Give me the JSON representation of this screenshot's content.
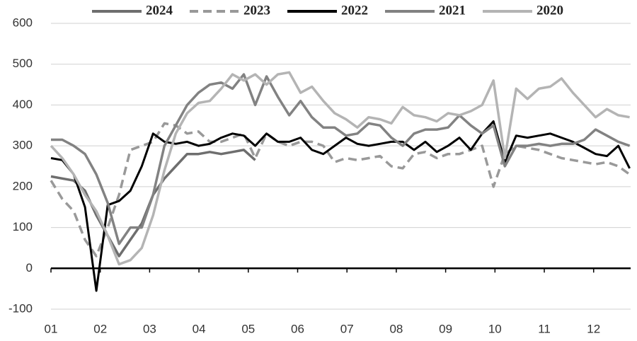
{
  "chart_data": {
    "type": "line",
    "legend": "top",
    "grid": true,
    "x": [
      1,
      1.23,
      1.46,
      1.69,
      1.92,
      2.15,
      2.38,
      2.61,
      2.84,
      3.07,
      3.3,
      3.53,
      3.76,
      3.99,
      4.22,
      4.45,
      4.68,
      4.91,
      5.14,
      5.37,
      5.6,
      5.83,
      6.06,
      6.29,
      6.52,
      6.75,
      6.98,
      7.21,
      7.44,
      7.67,
      7.9,
      8.13,
      8.36,
      8.59,
      8.82,
      9.05,
      9.28,
      9.51,
      9.74,
      9.97,
      10.2,
      10.43,
      10.66,
      10.89,
      11.12,
      11.35,
      11.58,
      11.81,
      12.04,
      12.27,
      12.5,
      12.73
    ],
    "xlim": [
      1,
      12.75
    ],
    "xticks": [
      {
        "value": 1,
        "label": "01"
      },
      {
        "value": 2,
        "label": "02"
      },
      {
        "value": 3,
        "label": "03"
      },
      {
        "value": 4,
        "label": "04"
      },
      {
        "value": 5,
        "label": "05"
      },
      {
        "value": 6,
        "label": "06"
      },
      {
        "value": 7,
        "label": "07"
      },
      {
        "value": 8,
        "label": "08"
      },
      {
        "value": 9,
        "label": "09"
      },
      {
        "value": 10,
        "label": "10"
      },
      {
        "value": 11,
        "label": "11"
      },
      {
        "value": 12,
        "label": "12"
      }
    ],
    "ylim": [
      -100,
      600
    ],
    "yticks": [
      -100,
      0,
      100,
      200,
      300,
      400,
      500,
      600
    ],
    "series": [
      {
        "name": "2024",
        "color": "#6e6e6e",
        "dashed": false,
        "values": [
          225,
          220,
          215,
          190,
          130,
          80,
          30,
          70,
          110,
          180,
          220,
          250,
          280,
          280,
          285,
          280,
          285,
          290,
          265,
          null,
          null,
          null,
          null,
          null,
          null,
          null,
          null,
          null,
          null,
          null,
          null,
          null,
          null,
          null,
          null,
          null,
          null,
          null,
          null,
          null,
          null,
          null,
          null,
          null,
          null,
          null,
          null,
          null,
          null,
          null,
          null,
          null
        ]
      },
      {
        "name": "2023",
        "color": "#999999",
        "dashed": true,
        "values": [
          215,
          170,
          140,
          70,
          30,
          100,
          180,
          290,
          300,
          310,
          355,
          350,
          330,
          335,
          310,
          310,
          320,
          330,
          270,
          330,
          310,
          300,
          310,
          310,
          300,
          260,
          270,
          265,
          270,
          275,
          250,
          245,
          280,
          285,
          270,
          280,
          280,
          290,
          300,
          200,
          280,
          300,
          295,
          290,
          280,
          270,
          265,
          260,
          255,
          260,
          250,
          230
        ]
      },
      {
        "name": "2022",
        "color": "#000000",
        "dashed": false,
        "values": [
          270,
          265,
          230,
          150,
          -55,
          155,
          165,
          190,
          250,
          330,
          310,
          305,
          310,
          300,
          305,
          320,
          330,
          325,
          300,
          330,
          310,
          310,
          320,
          290,
          280,
          300,
          320,
          305,
          300,
          305,
          310,
          310,
          290,
          310,
          285,
          300,
          320,
          290,
          330,
          360,
          260,
          325,
          320,
          325,
          330,
          320,
          310,
          295,
          280,
          275,
          300,
          245
        ]
      },
      {
        "name": "2021",
        "color": "#828282",
        "dashed": false,
        "values": [
          315,
          315,
          300,
          280,
          230,
          160,
          60,
          100,
          100,
          180,
          300,
          350,
          400,
          430,
          450,
          455,
          440,
          475,
          400,
          470,
          420,
          375,
          410,
          370,
          345,
          345,
          325,
          330,
          355,
          350,
          320,
          300,
          330,
          340,
          340,
          345,
          375,
          350,
          330,
          350,
          250,
          300,
          300,
          305,
          300,
          305,
          305,
          315,
          340,
          325,
          310,
          300
        ]
      },
      {
        "name": "2020",
        "color": "#b4b4b4",
        "dashed": false,
        "values": [
          300,
          270,
          230,
          180,
          140,
          80,
          10,
          20,
          50,
          130,
          240,
          330,
          380,
          405,
          410,
          440,
          475,
          460,
          475,
          450,
          475,
          480,
          430,
          445,
          410,
          380,
          365,
          345,
          370,
          365,
          355,
          395,
          375,
          370,
          360,
          380,
          375,
          385,
          400,
          460,
          270,
          440,
          415,
          440,
          445,
          465,
          430,
          400,
          370,
          390,
          375,
          370
        ]
      }
    ]
  }
}
